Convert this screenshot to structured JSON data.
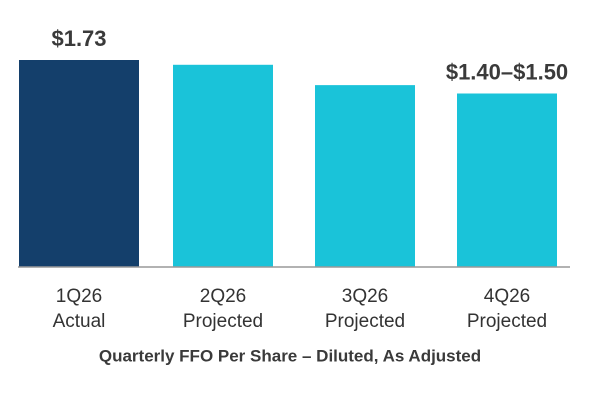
{
  "chart_data": {
    "type": "bar",
    "title": "Quarterly FFO Per Share – Diluted, As Adjusted",
    "categories": [
      "1Q26",
      "2Q26",
      "3Q26",
      "4Q26"
    ],
    "category_notes": [
      "Actual",
      "Projected",
      "Projected",
      "Projected"
    ],
    "values": [
      1.73,
      1.69,
      1.52,
      1.45
    ],
    "value_labels": [
      "$1.73",
      null,
      null,
      "$1.40–$1.50"
    ],
    "colors": [
      "#143f6b",
      "#1ac3d9",
      "#1ac3d9",
      "#1ac3d9"
    ]
  }
}
